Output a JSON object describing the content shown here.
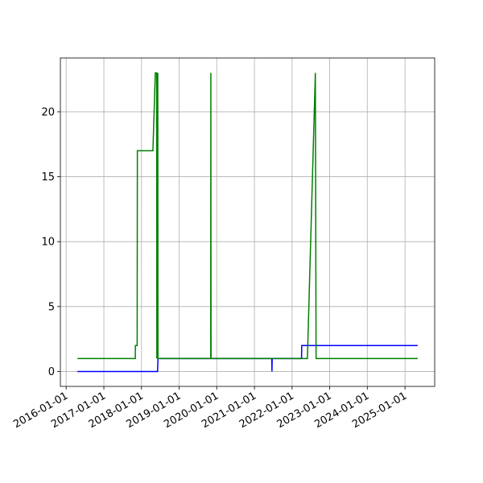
{
  "chart_data": {
    "type": "line",
    "xlim": [
      "2015-11-06",
      "2025-10-16"
    ],
    "xticks": [
      "2016-01-01",
      "2017-01-01",
      "2018-01-01",
      "2019-01-01",
      "2020-01-01",
      "2021-01-01",
      "2022-01-01",
      "2023-01-01",
      "2024-01-01",
      "2025-01-01"
    ],
    "ylim": [
      -1.15,
      24.15
    ],
    "yticks": [
      0,
      5,
      10,
      15,
      20
    ],
    "grid": true,
    "series": [
      {
        "color": "#0000ff",
        "x": [
          "2016-04-20",
          "2018-06-06",
          "2018-06-08",
          "2018-06-10",
          "2021-06-18",
          "2021-06-20",
          "2021-06-22",
          "2022-04-03",
          "2022-04-05",
          "2025-05-04"
        ],
        "values": [
          0,
          0,
          0.5,
          1,
          1,
          0,
          1,
          1,
          2,
          2
        ]
      },
      {
        "color": "#008000",
        "x": [
          "2016-04-20",
          "2017-11-02",
          "2017-11-03",
          "2017-11-20",
          "2017-11-22",
          "2018-04-22",
          "2018-05-15",
          "2018-05-28",
          "2018-05-30",
          "2018-06-02",
          "2018-06-04",
          "2018-06-08",
          "2018-06-10",
          "2019-11-04",
          "2019-11-05",
          "2019-11-07",
          "2022-05-30",
          "2022-08-15",
          "2022-08-22",
          "2025-05-04"
        ],
        "values": [
          1,
          1,
          2,
          2,
          17,
          17,
          23,
          23,
          1,
          23,
          1,
          23,
          1,
          1,
          23,
          1,
          1,
          23,
          1,
          1
        ]
      }
    ]
  }
}
